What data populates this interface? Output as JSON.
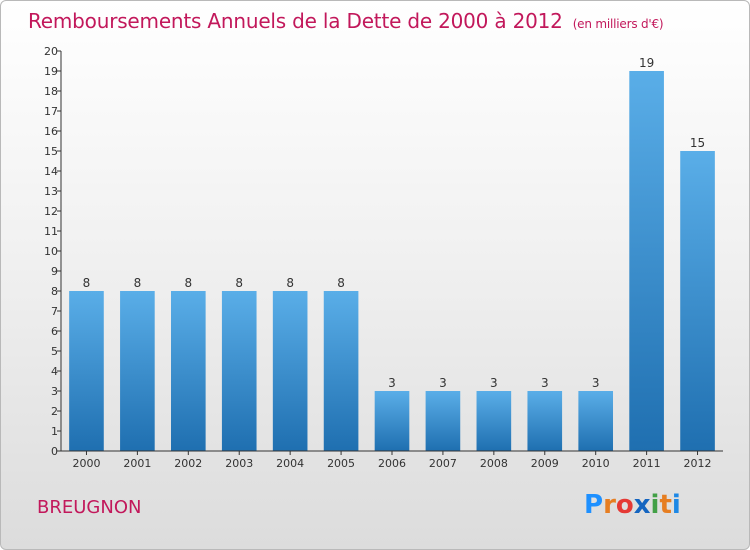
{
  "title": "Remboursements Annuels de la Dette de 2000 à 2012",
  "subtitle": "(en milliers d'€)",
  "commune": "BREUGNON",
  "logo": {
    "letters": [
      "P",
      "r",
      "o",
      "x",
      "i",
      "t",
      "i"
    ],
    "colors": [
      "#1e90ff",
      "#e67e22",
      "#e53935",
      "#1565c0",
      "#43a047",
      "#e67e22",
      "#1e88e5"
    ]
  },
  "colors": {
    "accent": "#c2185b",
    "bar_light": "#5aaee8",
    "bar_dark": "#1f6fb0"
  },
  "chart_data": {
    "type": "bar",
    "title": "Remboursements Annuels de la Dette de 2000 à 2012",
    "subtitle": "(en milliers d'€)",
    "xlabel": "",
    "ylabel": "",
    "categories": [
      "2000",
      "2001",
      "2002",
      "2003",
      "2004",
      "2005",
      "2006",
      "2007",
      "2008",
      "2009",
      "2010",
      "2011",
      "2012"
    ],
    "values": [
      8,
      8,
      8,
      8,
      8,
      8,
      3,
      3,
      3,
      3,
      3,
      19,
      15
    ],
    "data_labels": [
      "8",
      "8",
      "8",
      "8",
      "8",
      "8",
      "3",
      "3",
      "3",
      "3",
      "3",
      "19",
      "15"
    ],
    "ylim": [
      0,
      20
    ],
    "yticks": [
      "0",
      "1",
      "2",
      "3",
      "4",
      "5",
      "6",
      "7",
      "8",
      "9",
      "10",
      "11",
      "12",
      "13",
      "14",
      "15",
      "16",
      "17",
      "18",
      "19",
      "20"
    ],
    "grid": false,
    "legend": "none"
  }
}
